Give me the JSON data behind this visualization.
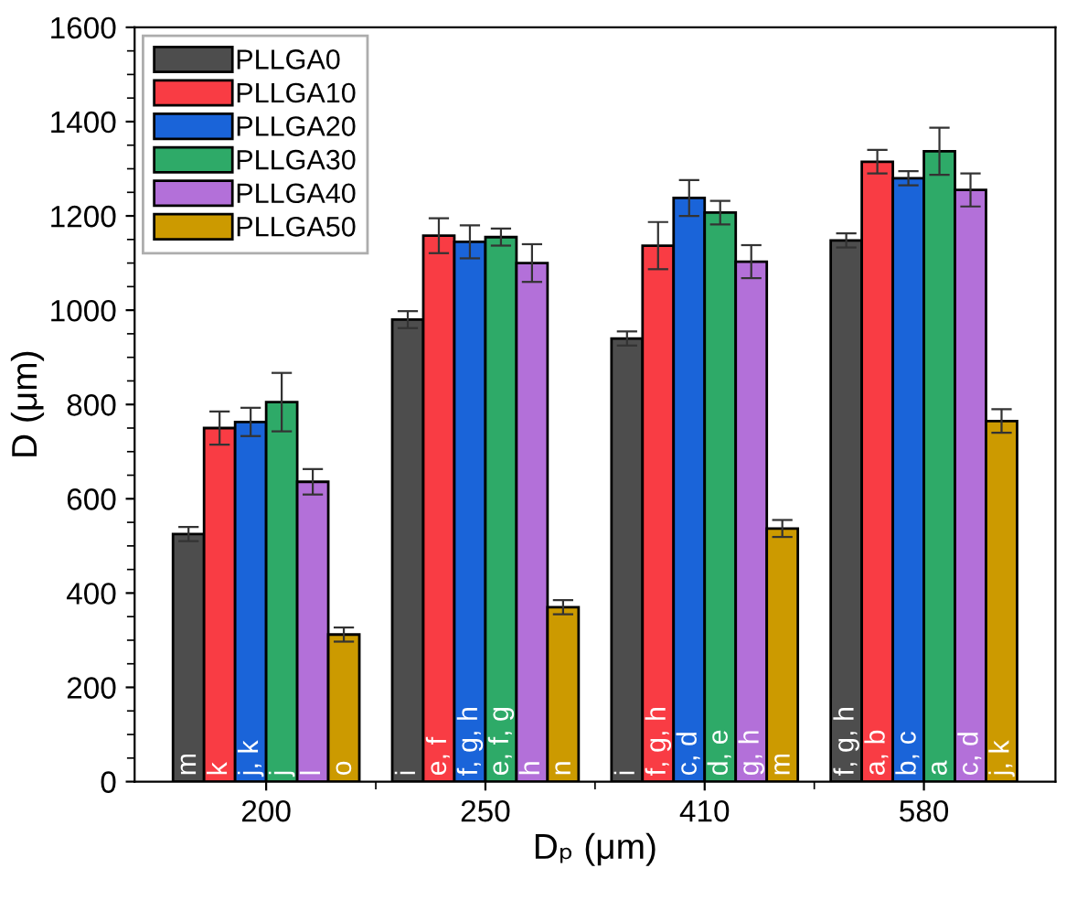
{
  "chart_data": {
    "type": "bar",
    "xlabel": "Dₚ (μm)",
    "ylabel": "D (μm)",
    "categories": [
      "200",
      "250",
      "410",
      "580"
    ],
    "series": [
      {
        "name": "PLLGA0",
        "color": "#4d4d4d",
        "values": [
          525,
          980,
          940,
          1148
        ],
        "errors": [
          15,
          18,
          15,
          15
        ],
        "value_labels": [
          "m",
          "i",
          "i",
          "f, g, h"
        ]
      },
      {
        "name": "PLLGA10",
        "color": "#f93c44",
        "values": [
          750,
          1158,
          1137,
          1315
        ],
        "errors": [
          35,
          37,
          50,
          25
        ],
        "value_labels": [
          "k",
          "e, f",
          "f, g, h",
          "a, b"
        ]
      },
      {
        "name": "PLLGA20",
        "color": "#1a64d9",
        "values": [
          763,
          1145,
          1238,
          1280
        ],
        "errors": [
          30,
          35,
          38,
          15
        ],
        "value_labels": [
          "j, k",
          "f, g, h",
          "c, d",
          "b, c"
        ]
      },
      {
        "name": "PLLGA30",
        "color": "#2eaa68",
        "values": [
          805,
          1155,
          1207,
          1337
        ],
        "errors": [
          62,
          18,
          25,
          50
        ],
        "value_labels": [
          "j",
          "e, f, g",
          "d, e",
          "a"
        ]
      },
      {
        "name": "PLLGA40",
        "color": "#b370d9",
        "values": [
          636,
          1100,
          1103,
          1255
        ],
        "errors": [
          27,
          40,
          35,
          35
        ],
        "value_labels": [
          "l",
          "h",
          "g, h",
          "c, d"
        ]
      },
      {
        "name": "PLLGA50",
        "color": "#cc9a00",
        "values": [
          312,
          370,
          537,
          765
        ],
        "errors": [
          15,
          15,
          18,
          25
        ],
        "value_labels": [
          "o",
          "n",
          "m",
          "j, k"
        ]
      }
    ],
    "ylim": [
      0,
      1600
    ],
    "yticks": [
      0,
      200,
      400,
      600,
      800,
      1000,
      1200,
      1400,
      1600
    ],
    "legend": "top left",
    "grid": false
  }
}
